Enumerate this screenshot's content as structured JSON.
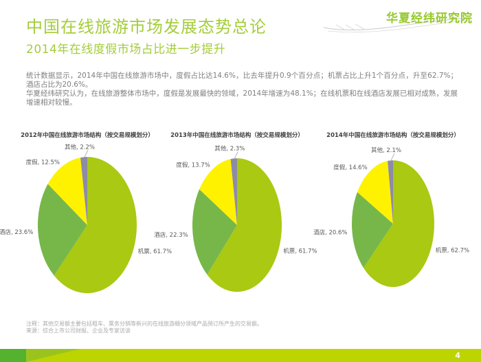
{
  "page": {
    "page_number": "4"
  },
  "header": {
    "title": "中国在线旅游市场发展态势总论",
    "subtitle": "2014年在线度假市场占比进一步提升",
    "logo_text": "华夏经纬研究院",
    "accent_color": "#a4cd3a",
    "logo_color": "#96c92c"
  },
  "intro": {
    "paragraph1": "统计数据显示，2014年中国在线旅游市场中，度假占比达14.6%，比去年提升0.9个百分点；机票占比上升1个百分点，升至62.7%；酒店占比为20.6%。",
    "paragraph2": "华夏经纬研究认为，在线旅游整体市场中，度假是发展最快的领域，2014年增速为48.1%；在线机票和在线酒店发展已相对成熟，发展增速相对较慢。"
  },
  "chart_data": [
    {
      "type": "pie",
      "title": "2012年中国在线旅游市场结构（按交易规模划分）",
      "labels": [
        "机票",
        "酒店",
        "度假",
        "其他"
      ],
      "slice_keys": [
        "air-ticket",
        "hotel",
        "vacation",
        "other"
      ],
      "values": [
        61.7,
        23.6,
        12.5,
        2.2
      ],
      "colors": [
        "#a9c913",
        "#77b74a",
        "#fff200",
        "#8e8ba8"
      ],
      "start_angle_deg": 0,
      "direction": "clockwise",
      "legend_position": "outside-labels",
      "label_format": "name, value%"
    },
    {
      "type": "pie",
      "title": "2013年中国在线旅游市场结构（按交易规模划分）",
      "labels": [
        "机票",
        "酒店",
        "度假",
        "其他"
      ],
      "slice_keys": [
        "air-ticket",
        "hotel",
        "vacation",
        "other"
      ],
      "values": [
        61.7,
        22.3,
        13.7,
        2.3
      ],
      "colors": [
        "#a9c913",
        "#77b74a",
        "#fff200",
        "#8e8ba8"
      ],
      "start_angle_deg": 0,
      "direction": "clockwise",
      "legend_position": "outside-labels",
      "label_format": "name, value%"
    },
    {
      "type": "pie",
      "title": "2014年中国在线旅游市场结构（按交易规模划分）",
      "labels": [
        "机票",
        "酒店",
        "度假",
        "其他"
      ],
      "slice_keys": [
        "air-ticket",
        "hotel",
        "vacation",
        "other"
      ],
      "values": [
        62.7,
        20.6,
        14.6,
        2.1
      ],
      "colors": [
        "#a9c913",
        "#77b74a",
        "#fff200",
        "#8e8ba8"
      ],
      "start_angle_deg": 0,
      "direction": "clockwise",
      "legend_position": "outside-labels",
      "label_format": "name, value%"
    }
  ],
  "footer": {
    "note": "注释：其他交易额主要包括租车、票务分销等新兴的在线旅游细分领域产品预订所产生的交易额。",
    "source": "来源：综合上市公司财报、企业及专家访谈",
    "bar_color": "#bcd400",
    "bar_accent_color": "#55b22e"
  }
}
